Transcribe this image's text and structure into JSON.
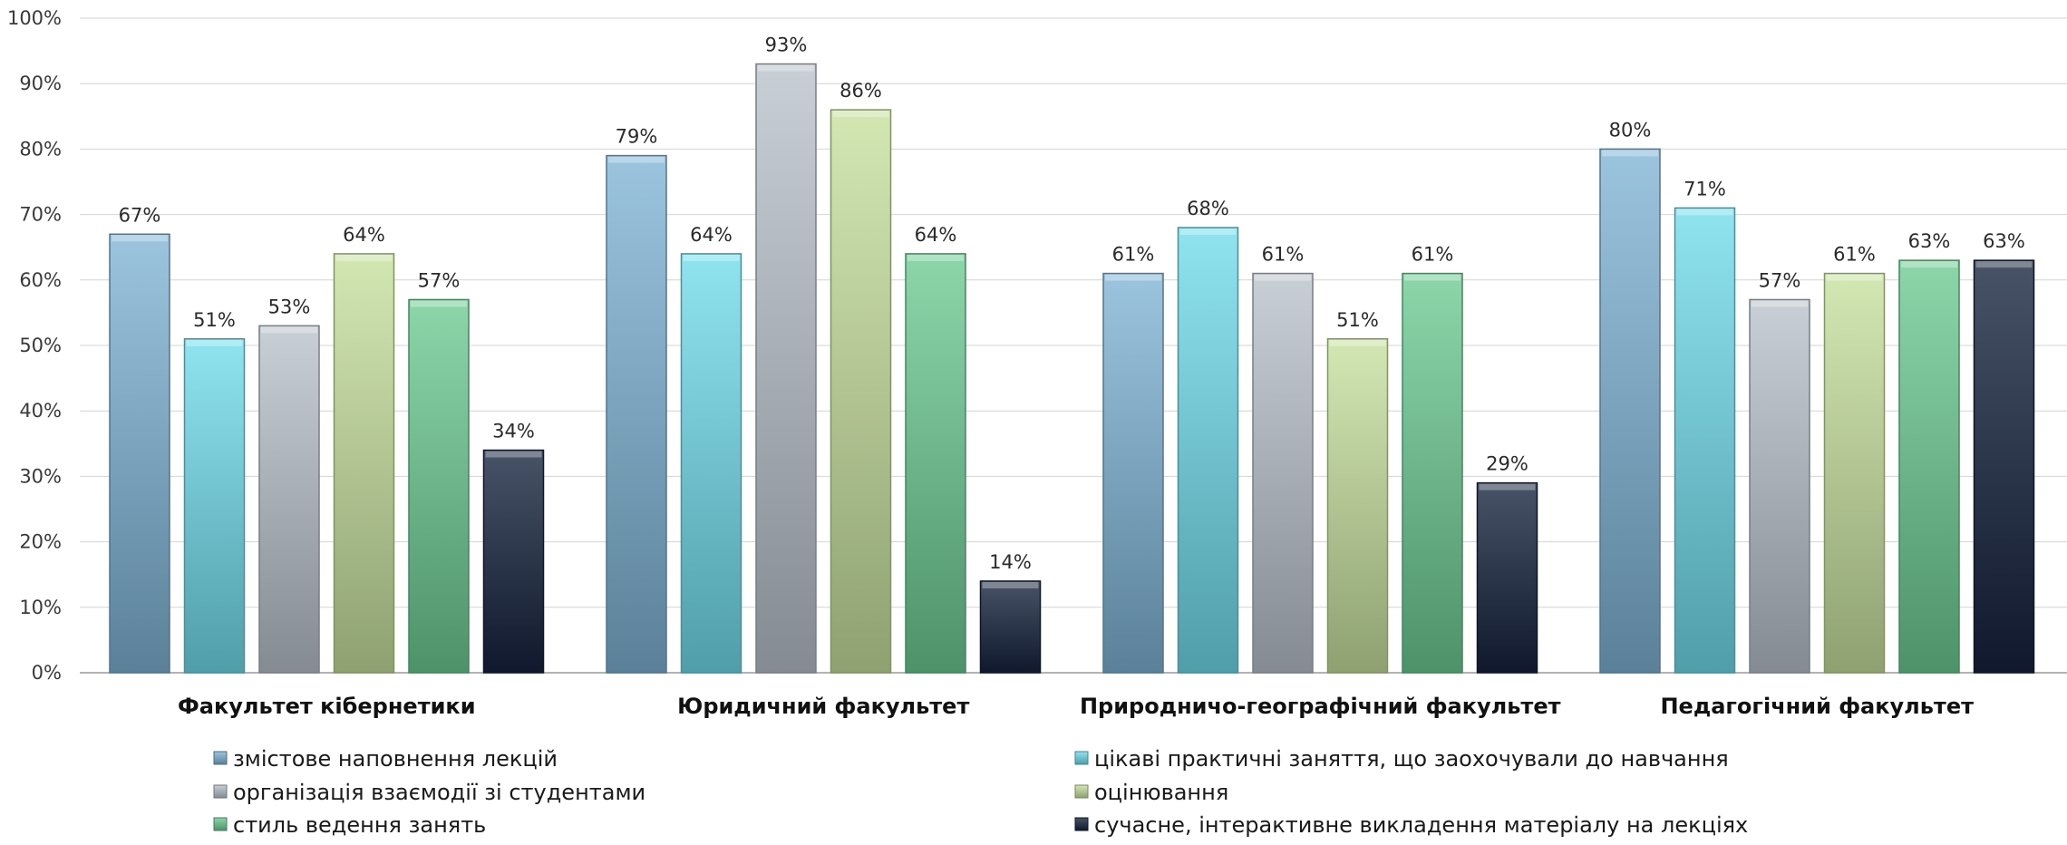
{
  "chart_data": {
    "type": "bar",
    "categories": [
      "Факультет кібернетики",
      "Юридичний факультет",
      "Природничо-географічний факультет",
      "Педагогічний факультет"
    ],
    "series": [
      {
        "name": "змістове наповнення лекцій",
        "values": [
          67,
          79,
          61,
          80
        ],
        "labels": [
          "67%",
          "79%",
          "61%",
          "80%"
        ],
        "color": "#7fb3d6"
      },
      {
        "name": "цікаві практичні заняття, що заохочували до навчання",
        "values": [
          51,
          64,
          68,
          71
        ],
        "labels": [
          "51%",
          "64%",
          "68%",
          "71%"
        ],
        "color": "#6fdcec"
      },
      {
        "name": "організація взаємодії зі студентами",
        "values": [
          53,
          93,
          61,
          57
        ],
        "labels": [
          "53%",
          "93%",
          "61%",
          "57%"
        ],
        "color": "#b9c1cb"
      },
      {
        "name": "оцінювання",
        "values": [
          64,
          86,
          51,
          61
        ],
        "labels": [
          "64%",
          "86%",
          "51%",
          "61%"
        ],
        "color": "#c6e09d"
      },
      {
        "name": "стиль ведення занять",
        "values": [
          57,
          64,
          61,
          63
        ],
        "labels": [
          "57%",
          "64%",
          "61%",
          "63%"
        ],
        "color": "#6ccb92"
      },
      {
        "name": "сучасне, інтерактивне викладення матеріалу на лекціях",
        "values": [
          34,
          14,
          29,
          63
        ],
        "labels": [
          "34%",
          "14%",
          "29%",
          "63%"
        ],
        "color": "#15223d"
      }
    ],
    "y_ticks": [
      "0%",
      "10%",
      "20%",
      "30%",
      "40%",
      "50%",
      "60%",
      "70%",
      "80%",
      "90%",
      "100%"
    ],
    "ylim": [
      0,
      100
    ],
    "grid": true,
    "legend_position": "bottom"
  }
}
